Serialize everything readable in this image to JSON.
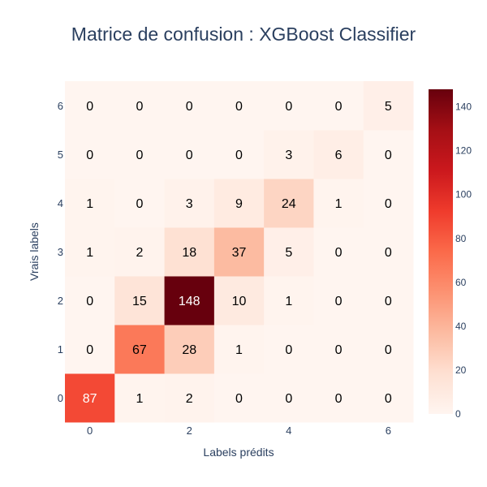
{
  "chart_data": {
    "type": "heatmap",
    "title": "Matrice de confusion : XGBoost Classifier",
    "xlabel": "Labels prédits",
    "ylabel": "Vrais labels",
    "x": [
      0,
      1,
      2,
      3,
      4,
      5,
      6
    ],
    "y": [
      0,
      1,
      2,
      3,
      4,
      5,
      6
    ],
    "x_tick_labels": [
      "0",
      "2",
      "4",
      "6"
    ],
    "y_tick_labels": [
      "0",
      "1",
      "2",
      "3",
      "4",
      "5",
      "6"
    ],
    "z": [
      [
        87,
        1,
        2,
        0,
        0,
        0,
        0
      ],
      [
        0,
        67,
        28,
        1,
        0,
        0,
        0
      ],
      [
        0,
        15,
        148,
        10,
        1,
        0,
        0
      ],
      [
        1,
        2,
        18,
        37,
        5,
        0,
        0
      ],
      [
        1,
        0,
        3,
        9,
        24,
        1,
        0
      ],
      [
        0,
        0,
        0,
        0,
        3,
        6,
        0
      ],
      [
        0,
        0,
        0,
        0,
        0,
        0,
        5
      ]
    ],
    "zlim": [
      0,
      148
    ],
    "colorscale": "Reds",
    "colorbar_ticks": [
      0,
      20,
      40,
      60,
      80,
      100,
      120,
      140
    ],
    "colorbar_tick_labels": [
      "0",
      "20",
      "40",
      "60",
      "80",
      "100",
      "120",
      "140"
    ],
    "colors": {
      "scale": [
        "#fff5f0",
        "#fee0d2",
        "#fcbba1",
        "#fc9272",
        "#fb6a4a",
        "#ef3b2c",
        "#cb181d",
        "#a50f15",
        "#67000d"
      ],
      "text": "#2a3f5f"
    }
  }
}
